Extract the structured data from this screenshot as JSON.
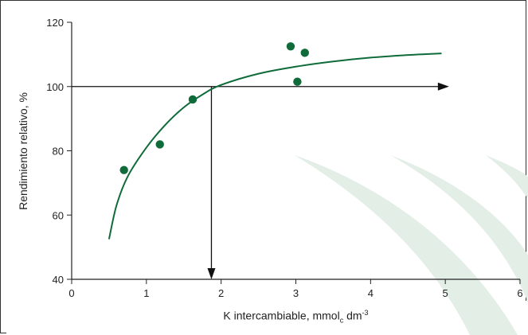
{
  "chart_data": {
    "type": "scatter",
    "xlabel_parts": [
      "K intercambiable, mmol",
      "c",
      " dm",
      "-3"
    ],
    "ylabel": "Rendimiento relativo, %",
    "xlim": [
      0,
      6
    ],
    "ylim": [
      40,
      120
    ],
    "x_ticks": [
      "0",
      "1",
      "2",
      "3",
      "4",
      "5",
      "6"
    ],
    "y_ticks": [
      "40",
      "60",
      "80",
      "100",
      "120"
    ],
    "points": [
      {
        "x": 0.7,
        "y": 74
      },
      {
        "x": 1.18,
        "y": 82
      },
      {
        "x": 1.62,
        "y": 96
      },
      {
        "x": 2.93,
        "y": 112.5
      },
      {
        "x": 3.02,
        "y": 101.5
      },
      {
        "x": 3.12,
        "y": 110.5
      }
    ],
    "fitted_curve": [
      {
        "x": 0.5,
        "y": 52.5
      },
      {
        "x": 0.6,
        "y": 63
      },
      {
        "x": 0.75,
        "y": 72
      },
      {
        "x": 1.0,
        "y": 81
      },
      {
        "x": 1.25,
        "y": 88
      },
      {
        "x": 1.5,
        "y": 93.5
      },
      {
        "x": 1.75,
        "y": 97.5
      },
      {
        "x": 2.0,
        "y": 100.5
      },
      {
        "x": 2.5,
        "y": 104
      },
      {
        "x": 3.0,
        "y": 106.2
      },
      {
        "x": 3.5,
        "y": 107.8
      },
      {
        "x": 4.0,
        "y": 109
      },
      {
        "x": 4.5,
        "y": 109.8
      },
      {
        "x": 4.95,
        "y": 110.3
      }
    ],
    "reference_y": 100,
    "reference_arrow_x_end": 5.05,
    "critical_x": 1.87,
    "colors": {
      "series": "#0f6b3a",
      "curve": "#0f6b3a",
      "axes": "#222222",
      "arrow": "#111111",
      "watermark": "#e3eee7"
    },
    "grid": false,
    "legend": "none"
  }
}
